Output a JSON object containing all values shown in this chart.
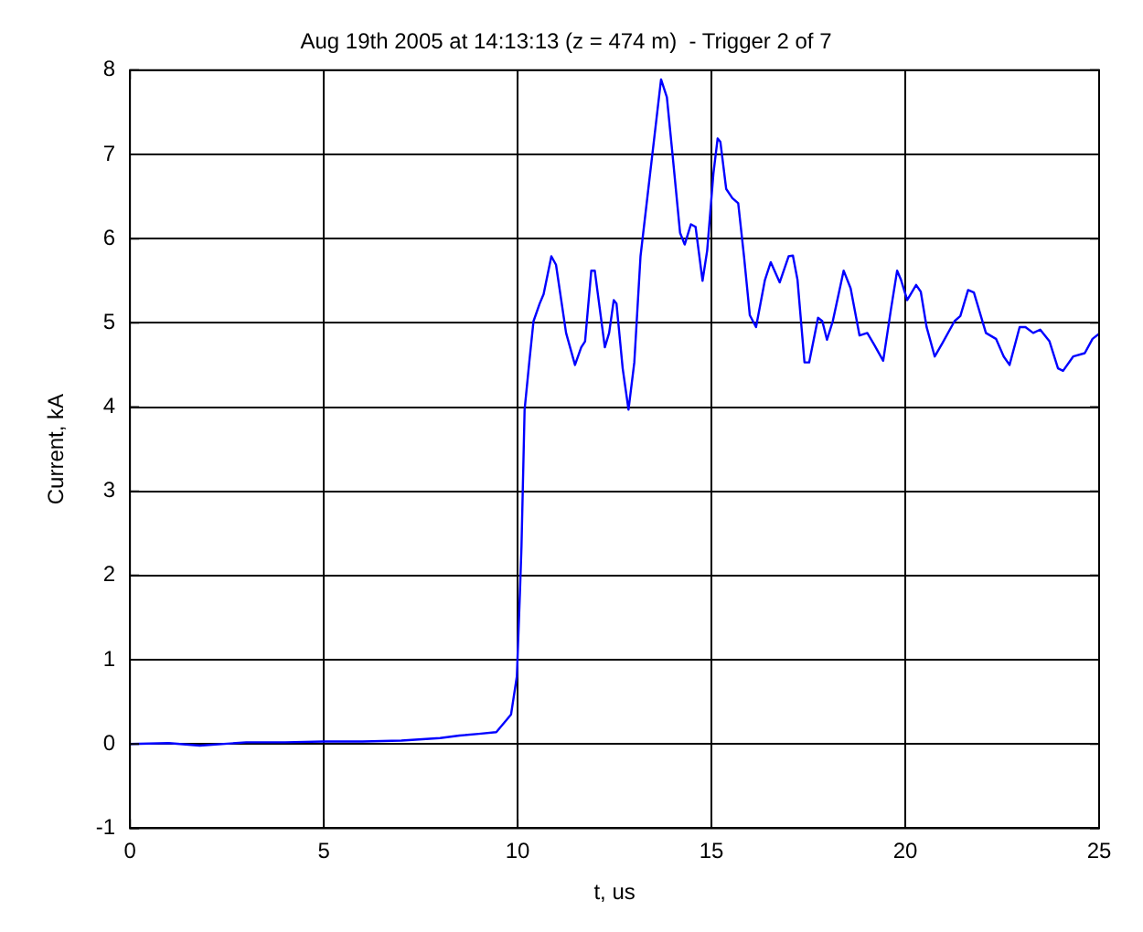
{
  "chart_data": {
    "type": "line",
    "title": "Aug 19th 2005 at 14:13:13 (z = 474 m)  - Trigger 2 of 7",
    "xlabel": "t, us",
    "ylabel": "Current, kA",
    "xlim": [
      0,
      25
    ],
    "xticks": [
      0,
      5,
      10,
      15,
      20,
      25
    ],
    "ylim": [
      -1,
      8
    ],
    "yticks": [
      -1,
      0,
      1,
      2,
      3,
      4,
      5,
      6,
      7,
      8
    ],
    "grid": true,
    "legend": false,
    "marker": "none",
    "line_style": "solid",
    "series": [
      {
        "color": "#0000ff",
        "x": [
          0,
          1,
          1.8,
          3,
          4,
          5,
          6,
          7,
          8,
          8.5,
          9,
          9.45,
          9.83,
          9.98,
          10.06,
          10.1,
          10.18,
          10.3,
          10.41,
          10.57,
          10.67,
          10.87,
          10.99,
          11.25,
          11.48,
          11.64,
          11.74,
          11.9,
          11.99,
          12.25,
          12.36,
          12.48,
          12.55,
          12.71,
          12.86,
          13.01,
          13.17,
          13.47,
          13.7,
          13.85,
          14.0,
          14.19,
          14.31,
          14.47,
          14.59,
          14.77,
          14.89,
          15.05,
          15.16,
          15.23,
          15.38,
          15.54,
          15.69,
          15.84,
          15.99,
          16.15,
          16.38,
          16.53,
          16.76,
          16.99,
          17.1,
          17.22,
          17.4,
          17.52,
          17.75,
          17.86,
          17.98,
          18.13,
          18.41,
          18.59,
          18.82,
          19.02,
          19.2,
          19.43,
          19.63,
          19.79,
          19.89,
          20.05,
          20.28,
          20.4,
          20.55,
          20.76,
          20.96,
          21.27,
          21.42,
          21.62,
          21.77,
          22.08,
          22.34,
          22.54,
          22.69,
          22.95,
          23.1,
          23.3,
          23.48,
          23.72,
          23.94,
          24.07,
          24.33,
          24.63,
          24.83,
          25.0
        ],
        "values": [
          0,
          0.01,
          -0.02,
          0.02,
          0.02,
          0.03,
          0.03,
          0.04,
          0.07,
          0.1,
          0.12,
          0.14,
          0.35,
          0.8,
          1.8,
          2.35,
          3.97,
          4.53,
          5.02,
          5.23,
          5.34,
          5.79,
          5.69,
          4.88,
          4.5,
          4.71,
          4.78,
          5.62,
          5.62,
          4.71,
          4.88,
          5.27,
          5.23,
          4.46,
          3.97,
          4.53,
          5.79,
          6.98,
          7.89,
          7.68,
          6.98,
          6.07,
          5.93,
          6.17,
          6.14,
          5.5,
          5.86,
          6.77,
          7.19,
          7.15,
          6.59,
          6.48,
          6.42,
          5.79,
          5.09,
          4.95,
          5.51,
          5.72,
          5.48,
          5.79,
          5.8,
          5.51,
          4.53,
          4.53,
          5.06,
          5.02,
          4.8,
          5.02,
          5.62,
          5.41,
          4.85,
          4.88,
          4.74,
          4.55,
          5.16,
          5.62,
          5.51,
          5.27,
          5.45,
          5.37,
          4.95,
          4.6,
          4.76,
          5.02,
          5.08,
          5.39,
          5.36,
          4.88,
          4.81,
          4.6,
          4.5,
          4.95,
          4.95,
          4.88,
          4.92,
          4.78,
          4.46,
          4.43,
          4.6,
          4.64,
          4.81,
          4.87
        ]
      }
    ]
  }
}
